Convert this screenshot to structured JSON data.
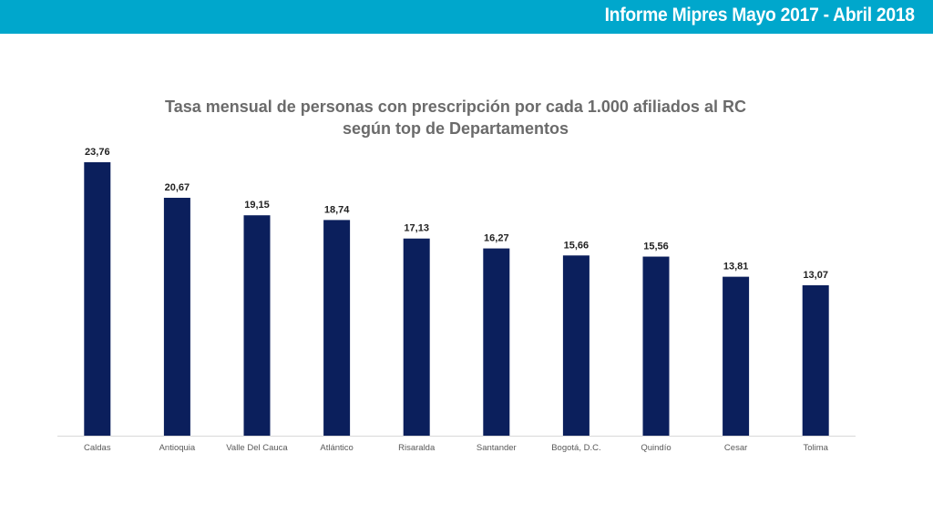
{
  "header": {
    "title": "Informe Mipres Mayo 2017 - Abril 2018"
  },
  "colors": {
    "header_band": "#00a7cc",
    "bar": "#0b1f5c"
  },
  "chart_data": {
    "type": "bar",
    "title_line1": "Tasa mensual de personas con prescripción por cada 1.000 afiliados al RC",
    "title_line2": "según top de Departamentos",
    "categories": [
      "Caldas",
      "Antioquia",
      "Valle Del Cauca",
      "Atlántico",
      "Risaralda",
      "Santander",
      "Bogotá, D.C.",
      "Quindío",
      "Cesar",
      "Tolima"
    ],
    "values": [
      23.76,
      20.67,
      19.15,
      18.74,
      17.13,
      16.27,
      15.66,
      15.56,
      13.81,
      13.07
    ],
    "value_labels": [
      "23,76",
      "20,67",
      "19,15",
      "18,74",
      "17,13",
      "16,27",
      "15,66",
      "15,56",
      "13,81",
      "13,07"
    ],
    "ylim": [
      0,
      25
    ],
    "grid": false,
    "legend": "none"
  }
}
